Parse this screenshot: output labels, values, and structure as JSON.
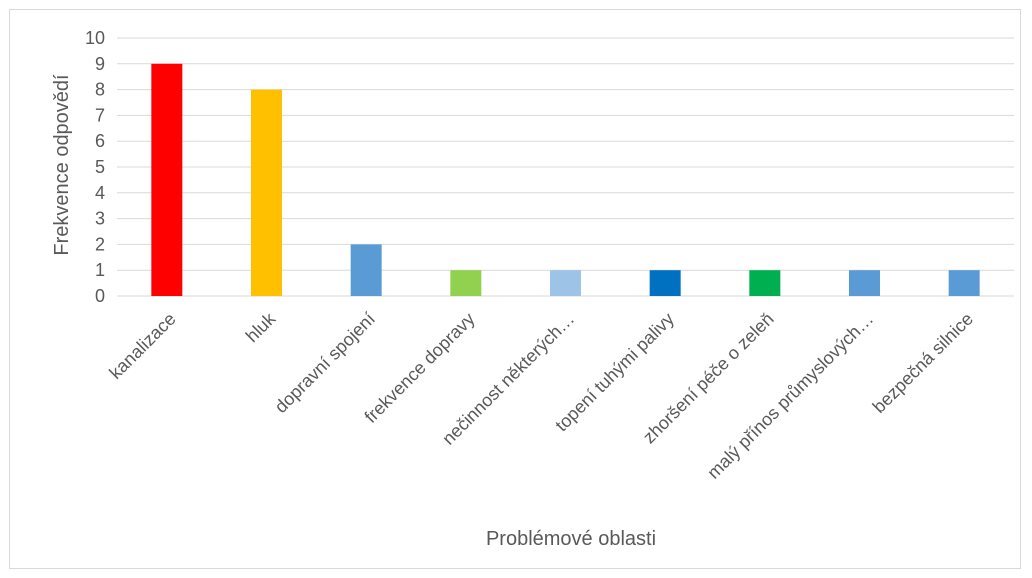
{
  "chart_data": {
    "type": "bar",
    "title": "",
    "xlabel": "Problémové oblasti",
    "ylabel": "Frekvence odpovědí",
    "ylim": [
      0,
      10
    ],
    "yticks": [
      0,
      1,
      2,
      3,
      4,
      5,
      6,
      7,
      8,
      9,
      10
    ],
    "grid": "horizontal",
    "legend": "none",
    "categories": [
      "kanalizace",
      "hluk",
      "dopravní spojení",
      "frekvence dopravy",
      "nečinnost některých…",
      "topení tuhými palivy",
      "zhoršení péče o zeleň",
      "malý přínos průmyslových…",
      "bezpečná silnice"
    ],
    "values": [
      9,
      8,
      2,
      1,
      1,
      1,
      1,
      1,
      1
    ],
    "colors": [
      "#ff0000",
      "#ffc000",
      "#5b9bd5",
      "#92d050",
      "#9dc3e6",
      "#0070c0",
      "#00b050",
      "#5b9bd5",
      "#5b9bd5"
    ]
  }
}
